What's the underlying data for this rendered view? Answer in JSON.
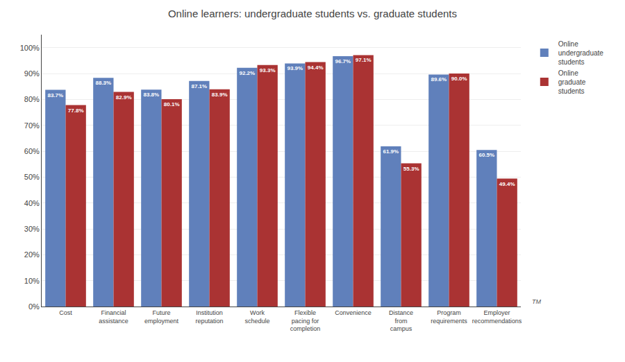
{
  "chart_data": {
    "type": "bar",
    "title": "Online learners: undergraduate students vs. graduate students",
    "categories": [
      "Cost",
      "Financial\nassistance",
      "Future\nemployment",
      "Institution\nreputation",
      "Work\nschedule",
      "Flexible\npacing for\ncompletion",
      "Convenience",
      "Distance\nfrom\ncampus",
      "Program\nrequirements",
      "Employer\nrecommendations"
    ],
    "series": [
      {
        "name": "Online\nundergraduate\nstudents",
        "color": "#6080bb",
        "values": [
          83.7,
          88.3,
          83.8,
          87.1,
          92.2,
          93.9,
          96.7,
          61.9,
          89.6,
          60.5
        ],
        "value_labels": [
          "83.7%",
          "88.3%",
          "83.8%",
          "87.1%",
          "92.2%",
          "93.9%",
          "96.7%",
          "61.9%",
          "89.6%",
          "60.5%"
        ]
      },
      {
        "name": "Online\ngraduate\nstudents",
        "color": "#aa3333",
        "values": [
          77.8,
          82.9,
          80.1,
          83.9,
          93.3,
          94.4,
          97.1,
          55.3,
          90.0,
          49.4
        ],
        "value_labels": [
          "77.8%",
          "82.9%",
          "80.1%",
          "83.9%",
          "93.3%",
          "94.4%",
          "97.1%",
          "55.3%",
          "90.0%",
          "49.4%"
        ]
      }
    ],
    "ylim": [
      0,
      105
    ],
    "yticks": [
      {
        "value": 0,
        "label": "0%"
      },
      {
        "value": 10,
        "label": "10%"
      },
      {
        "value": 20,
        "label": "20%"
      },
      {
        "value": 30,
        "label": "30%"
      },
      {
        "value": 40,
        "label": "40%"
      },
      {
        "value": 50,
        "label": "50%"
      },
      {
        "value": 60,
        "label": "60%"
      },
      {
        "value": 70,
        "label": "70%"
      },
      {
        "value": 80,
        "label": "80%"
      },
      {
        "value": 90,
        "label": "90%"
      },
      {
        "value": 100,
        "label": "100%"
      }
    ],
    "grid": true,
    "legend": "right",
    "data_labels": true,
    "annotations": [
      "TM"
    ]
  }
}
